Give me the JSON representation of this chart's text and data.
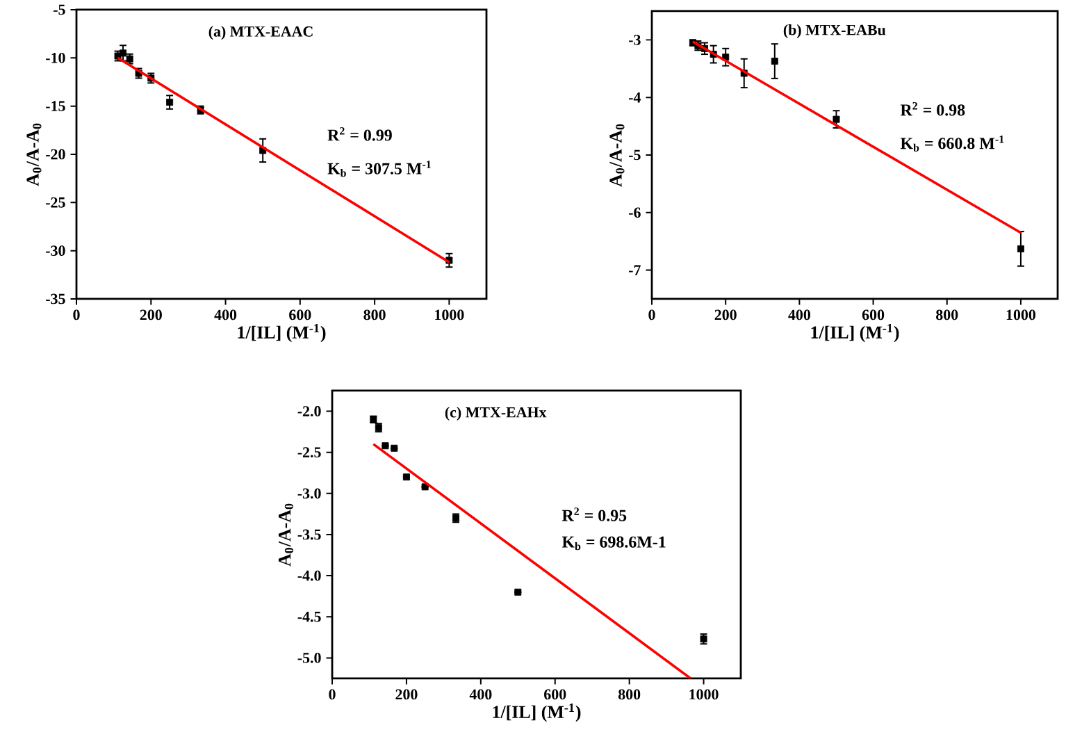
{
  "chart_data": [
    {
      "type": "scatter",
      "title": "(a) MTX-EAAC",
      "xlabel": "1/[IL] (M$^{-1}$)",
      "ylabel": "A$_{0}$/A-A$_{0}$",
      "xlim": [
        0,
        1100
      ],
      "ylim": [
        -35,
        -5
      ],
      "xticks": [
        0,
        200,
        400,
        600,
        800,
        1000
      ],
      "yticks": [
        -35,
        -30,
        -25,
        -20,
        -15,
        -10,
        -5
      ],
      "marker": "square",
      "annotations": [
        "R$^{2}$ = 0.99",
        "K$_{b}$ = 307.5 M$^{-1}$"
      ],
      "series": [
        {
          "color": "#000000",
          "x": [
            111,
            125,
            143,
            167,
            200,
            250,
            333,
            500,
            1000
          ],
          "values": [
            -9.8,
            -9.5,
            -10.1,
            -11.6,
            -12.1,
            -14.6,
            -15.4,
            -19.6,
            -31.0
          ],
          "errors": [
            0.5,
            0.8,
            0.5,
            0.5,
            0.5,
            0.7,
            0.4,
            1.2,
            0.7
          ]
        },
        {
          "type": "line",
          "marker": "none",
          "color": "#ff0000",
          "x": [
            111,
            1000
          ],
          "values": [
            -10.0,
            -31.2
          ]
        }
      ]
    },
    {
      "type": "scatter",
      "title": "(b) MTX-EABu",
      "xlabel": "1/[IL] (M$^{-1}$)",
      "ylabel": "A$_{0}$/A-A$_{0}$",
      "xlim": [
        0,
        1100
      ],
      "ylim": [
        -7.5,
        -2.5
      ],
      "xticks": [
        0,
        200,
        400,
        600,
        800,
        1000
      ],
      "yticks": [
        -7,
        -6,
        -5,
        -4,
        -3
      ],
      "marker": "square",
      "annotations": [
        "R$^{2}$ = 0.98",
        "K$_{b}$ = 660.8 M$^{-1}$"
      ],
      "series": [
        {
          "color": "#000000",
          "x": [
            111,
            125,
            143,
            167,
            200,
            250,
            333,
            500,
            1000
          ],
          "values": [
            -3.05,
            -3.1,
            -3.15,
            -3.25,
            -3.3,
            -3.58,
            -3.37,
            -4.38,
            -6.63
          ],
          "errors": [
            0.05,
            0.08,
            0.1,
            0.15,
            0.15,
            0.25,
            0.3,
            0.15,
            0.3
          ]
        },
        {
          "type": "line",
          "marker": "none",
          "color": "#ff0000",
          "x": [
            111,
            1000
          ],
          "values": [
            -3.03,
            -6.35
          ]
        }
      ]
    },
    {
      "type": "scatter",
      "title": "(c) MTX-EAHx",
      "xlabel": "1/[IL] (M$^{-1}$)",
      "ylabel": "A$_{0}$/A-A$_{0}$",
      "xlim": [
        0,
        1100
      ],
      "ylim": [
        -5.25,
        -1.75
      ],
      "xticks": [
        0,
        200,
        400,
        600,
        800,
        1000
      ],
      "yticks": [
        {
          "value": -5,
          "label": "-5.0"
        },
        -4.5,
        {
          "value": -4,
          "label": "-4.0"
        },
        -3.5,
        {
          "value": -3,
          "label": "-3.0"
        },
        -2.5,
        {
          "value": -2,
          "label": "-2.0"
        }
      ],
      "marker": "square",
      "annotations": [
        "R$^{2}$ = 0.95",
        "K$_{b}$ = 698.6M-1"
      ],
      "series": [
        {
          "color": "#000000",
          "x": [
            111,
            125,
            143,
            167,
            200,
            250,
            333,
            500,
            1000
          ],
          "values": [
            -2.1,
            -2.2,
            -2.42,
            -2.45,
            -2.8,
            -2.92,
            -3.3,
            -4.2,
            -4.77
          ],
          "errors": [
            0.04,
            0.05,
            null,
            null,
            null,
            null,
            0.05,
            null,
            0.06
          ]
        },
        {
          "type": "line",
          "marker": "none",
          "color": "#ff0000",
          "x": [
            111,
            965
          ],
          "values": [
            -2.4,
            -5.25
          ]
        }
      ]
    }
  ]
}
